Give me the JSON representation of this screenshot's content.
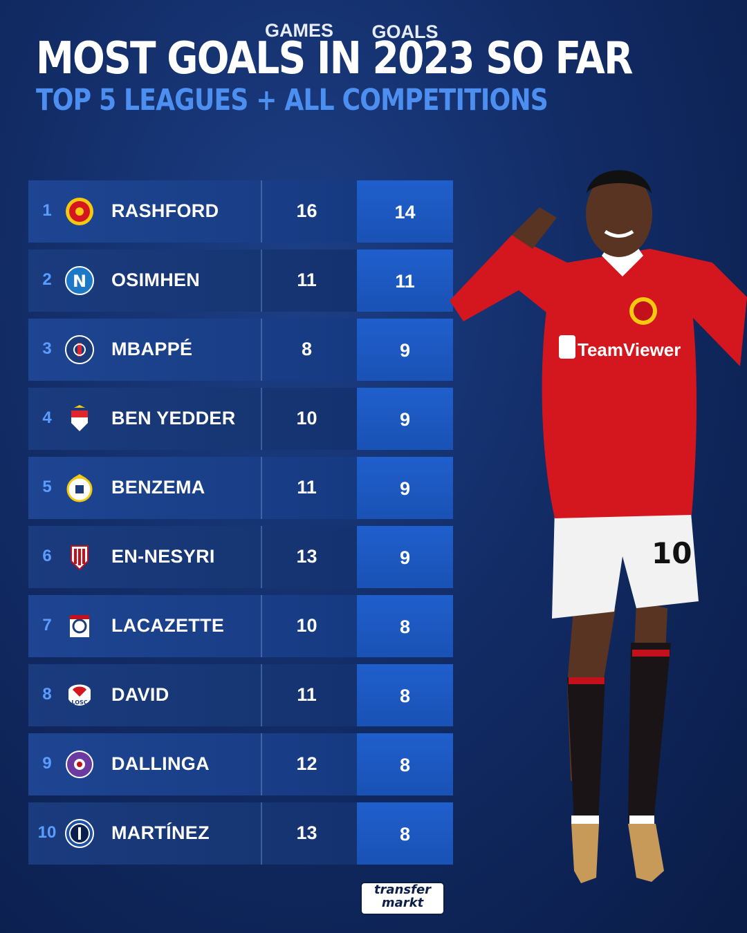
{
  "header": {
    "title": "MOST GOALS IN 2023 SO FAR",
    "subtitle": "TOP 5 LEAGUES + ALL COMPETITIONS"
  },
  "columns": {
    "games": "GAMES",
    "goals": "GOALS"
  },
  "rows": [
    {
      "rank": "1",
      "name": "RASHFORD",
      "games": "16",
      "goals": "14",
      "crest": "manchester-united-crest"
    },
    {
      "rank": "2",
      "name": "OSIMHEN",
      "games": "11",
      "goals": "11",
      "crest": "napoli-crest"
    },
    {
      "rank": "3",
      "name": "MBAPPÉ",
      "games": "8",
      "goals": "9",
      "crest": "psg-crest"
    },
    {
      "rank": "4",
      "name": "BEN YEDDER",
      "games": "10",
      "goals": "9",
      "crest": "monaco-crest"
    },
    {
      "rank": "5",
      "name": "BENZEMA",
      "games": "11",
      "goals": "9",
      "crest": "real-madrid-crest"
    },
    {
      "rank": "6",
      "name": "EN-NESYRI",
      "games": "13",
      "goals": "9",
      "crest": "sevilla-crest"
    },
    {
      "rank": "7",
      "name": "LACAZETTE",
      "games": "10",
      "goals": "8",
      "crest": "lyon-crest"
    },
    {
      "rank": "8",
      "name": "DAVID",
      "games": "11",
      "goals": "8",
      "crest": "lille-crest"
    },
    {
      "rank": "9",
      "name": "DALLINGA",
      "games": "12",
      "goals": "8",
      "crest": "toulouse-crest"
    },
    {
      "rank": "10",
      "name": "MARTÍNEZ",
      "games": "13",
      "goals": "8",
      "crest": "inter-crest"
    }
  ],
  "brand": {
    "line1": "transfer",
    "line2": "markt"
  },
  "colors": {
    "accent": "#4d8ff0",
    "goals_cell": "#1f5fcc",
    "kit_red": "#d4171e"
  }
}
